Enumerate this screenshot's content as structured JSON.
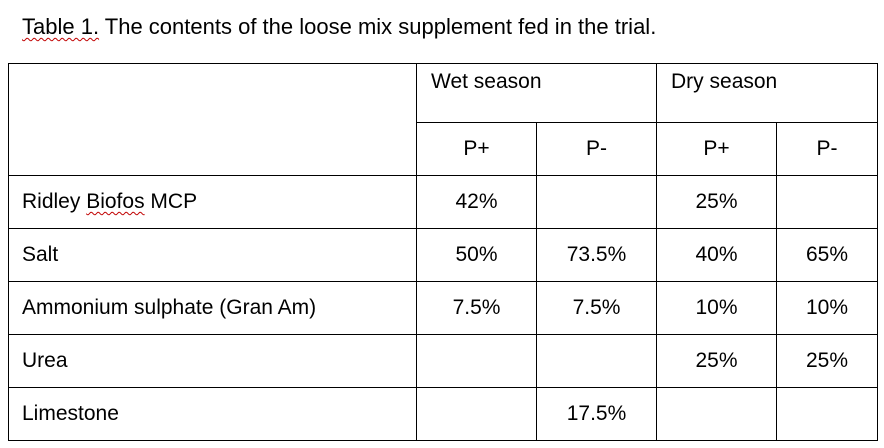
{
  "caption": {
    "prefix": "Table 1.",
    "rest": " The contents of the loose mix supplement fed in the trial."
  },
  "table": {
    "seasons": [
      "Wet season",
      "Dry season"
    ],
    "subheaders": [
      "P+",
      "P-",
      "P+",
      "P-"
    ],
    "rows": [
      {
        "label_parts": [
          "Ridley ",
          "Biofos",
          " MCP"
        ],
        "cells": [
          "42%",
          "",
          "25%",
          ""
        ]
      },
      {
        "label_parts": [
          "Salt",
          "",
          ""
        ],
        "cells": [
          "50%",
          "73.5%",
          "40%",
          "65%"
        ]
      },
      {
        "label_parts": [
          "Ammonium sulphate (Gran Am)",
          "",
          ""
        ],
        "cells": [
          "7.5%",
          "7.5%",
          "10%",
          "10%"
        ]
      },
      {
        "label_parts": [
          "Urea",
          "",
          ""
        ],
        "cells": [
          "",
          "",
          "25%",
          "25%"
        ]
      },
      {
        "label_parts": [
          "Limestone",
          "",
          ""
        ],
        "cells": [
          "",
          "17.5%",
          "",
          ""
        ]
      }
    ]
  }
}
